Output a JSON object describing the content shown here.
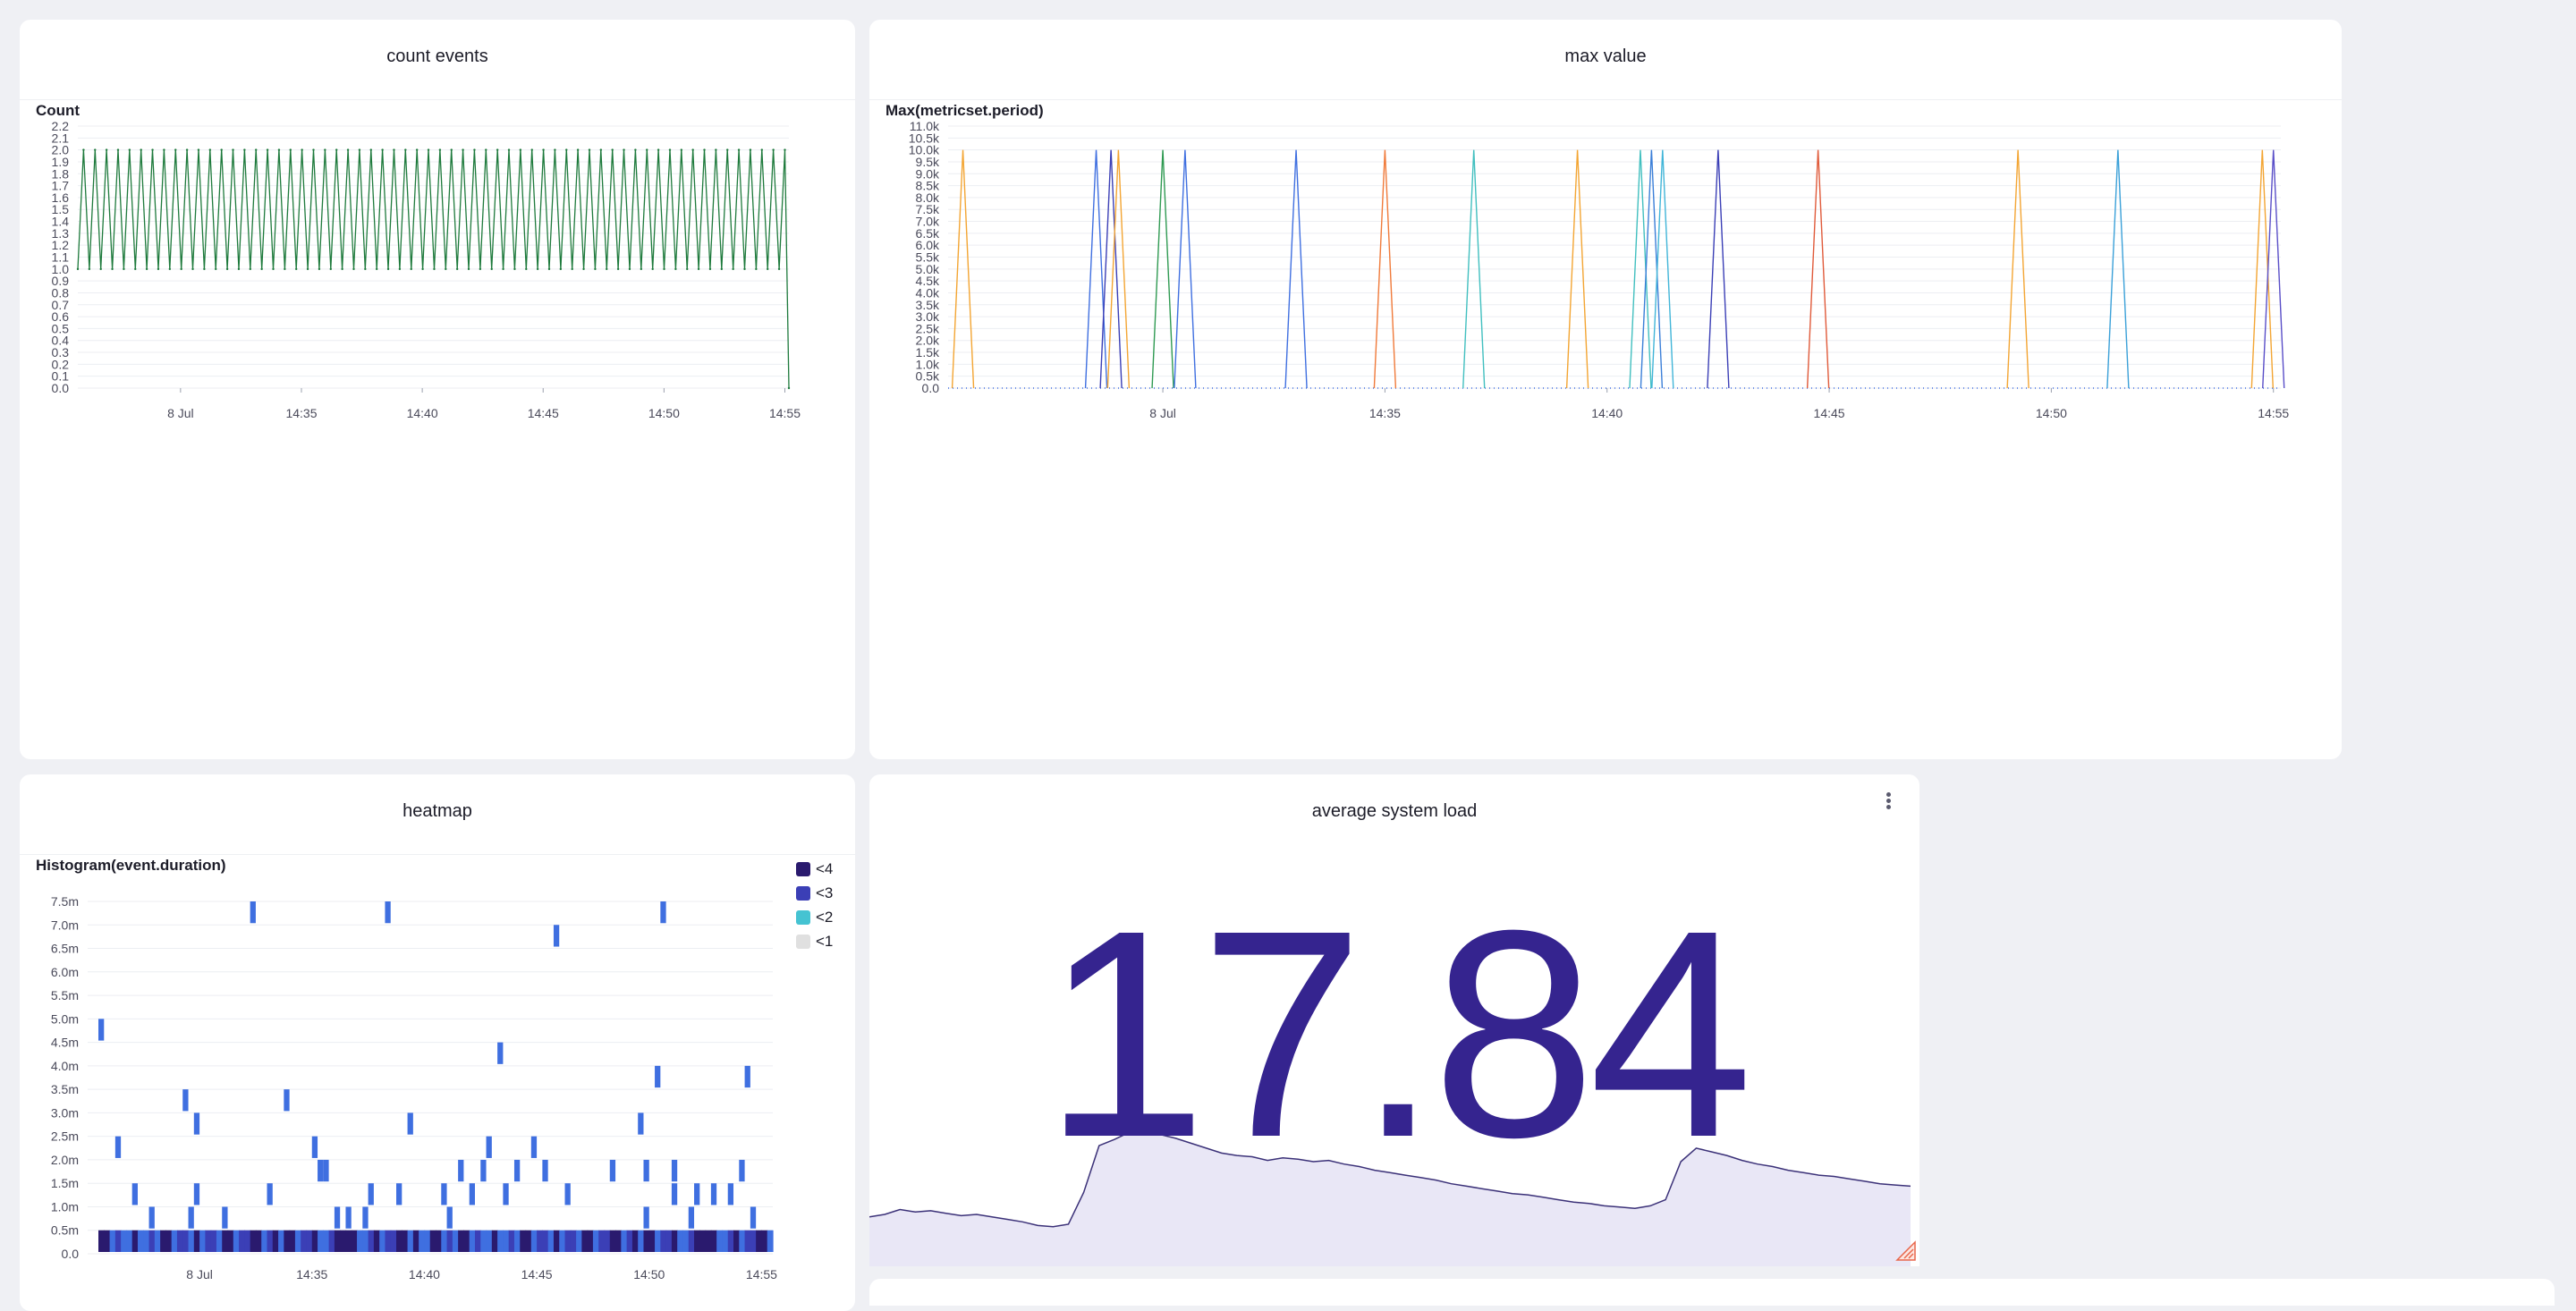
{
  "colors": {
    "background": "#eff0f4",
    "panel": "#ffffff",
    "count_line": "#1e7a3c",
    "heatmap_dark": "#1f1964",
    "heatmap_mid": "#3b3fb6",
    "heatmap_light": "#3f6fe0",
    "bignum": "#35248f",
    "sparkline_fill": "#e9e7f6",
    "sparkline_stroke": "#3b3178",
    "resize_handle": "#e8674c"
  },
  "panels": {
    "count_events": {
      "title": "count events"
    },
    "max_value": {
      "title": "max value"
    },
    "heatmap": {
      "title": "heatmap"
    },
    "average_system_load": {
      "title": "average system load",
      "value": "17.84",
      "menu_icon": "kebab-menu-icon",
      "resize_icon": "resize-handle-icon"
    }
  },
  "chart_data": [
    {
      "type": "line",
      "title": "count events",
      "ylabel": "Count",
      "xlabel": "",
      "ylim": [
        0,
        2.2
      ],
      "yticks": [
        "0.0",
        "0.1",
        "0.2",
        "0.3",
        "0.4",
        "0.5",
        "0.6",
        "0.7",
        "0.8",
        "0.9",
        "1.0",
        "1.1",
        "1.2",
        "1.3",
        "1.4",
        "1.5",
        "1.6",
        "1.7",
        "1.8",
        "1.9",
        "2.0",
        "2.1",
        "2.2"
      ],
      "xticks": [
        "8 Jul",
        "14:35",
        "14:40",
        "14:45",
        "14:50",
        "14:55"
      ],
      "xlim": [
        "14:25:45",
        "14:55:10"
      ],
      "grid": true,
      "series": [
        {
          "color": "#1e7a3c",
          "pattern": "alternating 1 and 2 from 14:25:45 to 14:55:00, then 0 at 14:55:10",
          "values": [
            1,
            2,
            1,
            2,
            1,
            2,
            1,
            2,
            1,
            2,
            1,
            2,
            1,
            2,
            1,
            2,
            1,
            2,
            1,
            2,
            1,
            2,
            1,
            2,
            1,
            2,
            1,
            2,
            1,
            2,
            1,
            2,
            1,
            2,
            1,
            2,
            1,
            2,
            1,
            2,
            1,
            2,
            1,
            2,
            1,
            2,
            1,
            2,
            1,
            2,
            1,
            2,
            1,
            2,
            1,
            2,
            1,
            2,
            1,
            2,
            1,
            2,
            1,
            2,
            1,
            2,
            1,
            2,
            1,
            2,
            1,
            2,
            1,
            2,
            1,
            2,
            1,
            2,
            1,
            2,
            1,
            2,
            1,
            2,
            1,
            2,
            1,
            2,
            1,
            2,
            1,
            2,
            1,
            2,
            1,
            2,
            1,
            2,
            1,
            2,
            1,
            2,
            1,
            2,
            1,
            2,
            1,
            2,
            1,
            2,
            1,
            2,
            1,
            2,
            1,
            2,
            1,
            2,
            1,
            2,
            1,
            2,
            1,
            2,
            0
          ]
        }
      ]
    },
    {
      "type": "line",
      "title": "max value",
      "ylabel": "Max(metricset.period)",
      "xlabel": "",
      "ylim": [
        0,
        11000
      ],
      "yticks": [
        "0.0",
        "0.5k",
        "1.0k",
        "1.5k",
        "2.0k",
        "2.5k",
        "3.0k",
        "3.5k",
        "4.0k",
        "4.5k",
        "5.0k",
        "5.5k",
        "6.0k",
        "6.5k",
        "7.0k",
        "7.5k",
        "8.0k",
        "8.5k",
        "9.0k",
        "9.5k",
        "10.0k",
        "10.5k",
        "11.0k"
      ],
      "xticks": [
        "8 Jul",
        "14:35",
        "14:40",
        "14:45",
        "14:50",
        "14:55"
      ],
      "xlim": [
        "14:25:10",
        "14:55:10"
      ],
      "grid": true,
      "baseline": 0,
      "spikes": [
        {
          "time": "14:25:30",
          "value": 10000,
          "color": "#f3a533"
        },
        {
          "time": "14:28:30",
          "value": 10000,
          "color": "#3f6fe0"
        },
        {
          "time": "14:28:50",
          "value": 10000,
          "color": "#3b3fb6"
        },
        {
          "time": "14:29:00",
          "value": 10000,
          "color": "#f3a533"
        },
        {
          "time": "14:30:00",
          "value": 10000,
          "color": "#2f9a52"
        },
        {
          "time": "14:30:30",
          "value": 10000,
          "color": "#3f6fe0"
        },
        {
          "time": "14:33:00",
          "value": 10000,
          "color": "#3f6fe0"
        },
        {
          "time": "14:35:00",
          "value": 10000,
          "color": "#f07a3a"
        },
        {
          "time": "14:37:00",
          "value": 10000,
          "color": "#41bfbf"
        },
        {
          "time": "14:39:20",
          "value": 10000,
          "color": "#f3a533"
        },
        {
          "time": "14:40:45",
          "value": 10000,
          "color": "#41bfbf"
        },
        {
          "time": "14:41:00",
          "value": 10000,
          "color": "#3b7fd8"
        },
        {
          "time": "14:41:15",
          "value": 10000,
          "color": "#41b5d8"
        },
        {
          "time": "14:42:30",
          "value": 10000,
          "color": "#3b3fb6"
        },
        {
          "time": "14:44:45",
          "value": 10000,
          "color": "#e05a3a"
        },
        {
          "time": "14:49:15",
          "value": 10000,
          "color": "#f3a533"
        },
        {
          "time": "14:51:30",
          "value": 10000,
          "color": "#3aa0d8"
        },
        {
          "time": "14:54:45",
          "value": 10000,
          "color": "#f3a533"
        },
        {
          "time": "14:55:00",
          "value": 10000,
          "color": "#5a4fc8"
        }
      ]
    },
    {
      "type": "heatmap",
      "title": "heatmap",
      "ylabel": "Histogram(event.duration)",
      "xlabel": "",
      "ylim": [
        0,
        7.5
      ],
      "yunit": "m",
      "yticks": [
        "0.0",
        "0.5m",
        "1.0m",
        "1.5m",
        "2.0m",
        "2.5m",
        "3.0m",
        "3.5m",
        "4.0m",
        "4.5m",
        "5.0m",
        "5.5m",
        "6.0m",
        "6.5m",
        "7.0m",
        "7.5m"
      ],
      "xticks": [
        "8 Jul",
        "14:35",
        "14:40",
        "14:45",
        "14:50",
        "14:55"
      ],
      "xlim": [
        "14:25:30",
        "14:55:30"
      ],
      "legend": {
        "position": "top-right",
        "items": [
          {
            "label": "<4",
            "color": "#2a1a6e"
          },
          {
            "label": "<3",
            "color": "#3b3fb6"
          },
          {
            "label": "<2",
            "color": "#45c3d2"
          },
          {
            "label": "<1",
            "color": "#e0e0e0"
          }
        ]
      },
      "bottom_row_buckets_per_minute": 4,
      "bottom_row_pattern": "dense mix of <4, <3 and <2 across 14:25:30–14:55:30 at 0.0–0.5m",
      "cells": [
        {
          "time": "14:25:30",
          "y": 4.5,
          "level": "<2"
        },
        {
          "time": "14:26:15",
          "y": 2.0,
          "level": "<2"
        },
        {
          "time": "14:27:00",
          "y": 1.0,
          "level": "<2"
        },
        {
          "time": "14:27:45",
          "y": 0.5,
          "level": "<2"
        },
        {
          "time": "14:29:15",
          "y": 3.0,
          "level": "<2"
        },
        {
          "time": "14:29:45",
          "y": 2.5,
          "level": "<2"
        },
        {
          "time": "14:29:45",
          "y": 1.0,
          "level": "<2"
        },
        {
          "time": "14:29:30",
          "y": 0.5,
          "level": "<2"
        },
        {
          "time": "14:31:00",
          "y": 0.5,
          "level": "<2"
        },
        {
          "time": "14:32:15",
          "y": 7.0,
          "level": "<2"
        },
        {
          "time": "14:33:00",
          "y": 1.0,
          "level": "<2"
        },
        {
          "time": "14:33:45",
          "y": 3.0,
          "level": "<2"
        },
        {
          "time": "14:35:00",
          "y": 2.0,
          "level": "<2"
        },
        {
          "time": "14:35:15",
          "y": 1.5,
          "level": "<2"
        },
        {
          "time": "14:35:30",
          "y": 1.5,
          "level": "<2"
        },
        {
          "time": "14:36:00",
          "y": 0.5,
          "level": "<2"
        },
        {
          "time": "14:36:30",
          "y": 0.5,
          "level": "<2"
        },
        {
          "time": "14:37:15",
          "y": 0.5,
          "level": "<2"
        },
        {
          "time": "14:37:30",
          "y": 1.0,
          "level": "<2"
        },
        {
          "time": "14:38:15",
          "y": 7.0,
          "level": "<2"
        },
        {
          "time": "14:38:45",
          "y": 1.0,
          "level": "<2"
        },
        {
          "time": "14:39:15",
          "y": 2.5,
          "level": "<2"
        },
        {
          "time": "14:40:45",
          "y": 1.0,
          "level": "<2"
        },
        {
          "time": "14:41:30",
          "y": 1.5,
          "level": "<2"
        },
        {
          "time": "14:41:00",
          "y": 0.5,
          "level": "<2"
        },
        {
          "time": "14:42:00",
          "y": 1.0,
          "level": "<2"
        },
        {
          "time": "14:42:30",
          "y": 1.5,
          "level": "<2"
        },
        {
          "time": "14:42:45",
          "y": 2.0,
          "level": "<2"
        },
        {
          "time": "14:43:15",
          "y": 4.0,
          "level": "<2"
        },
        {
          "time": "14:43:30",
          "y": 1.0,
          "level": "<2"
        },
        {
          "time": "14:44:00",
          "y": 1.5,
          "level": "<2"
        },
        {
          "time": "14:44:45",
          "y": 2.0,
          "level": "<2"
        },
        {
          "time": "14:45:15",
          "y": 1.5,
          "level": "<2"
        },
        {
          "time": "14:45:45",
          "y": 6.5,
          "level": "<2"
        },
        {
          "time": "14:46:15",
          "y": 1.0,
          "level": "<2"
        },
        {
          "time": "14:48:15",
          "y": 1.5,
          "level": "<2"
        },
        {
          "time": "14:49:30",
          "y": 2.5,
          "level": "<2"
        },
        {
          "time": "14:49:45",
          "y": 1.5,
          "level": "<2"
        },
        {
          "time": "14:49:45",
          "y": 0.5,
          "level": "<2"
        },
        {
          "time": "14:50:15",
          "y": 3.5,
          "level": "<2"
        },
        {
          "time": "14:50:30",
          "y": 7.0,
          "level": "<2"
        },
        {
          "time": "14:51:00",
          "y": 1.0,
          "level": "<2"
        },
        {
          "time": "14:51:00",
          "y": 1.5,
          "level": "<2"
        },
        {
          "time": "14:51:45",
          "y": 0.5,
          "level": "<2"
        },
        {
          "time": "14:52:00",
          "y": 1.0,
          "level": "<2"
        },
        {
          "time": "14:52:45",
          "y": 1.0,
          "level": "<2"
        },
        {
          "time": "14:53:30",
          "y": 1.0,
          "level": "<2"
        },
        {
          "time": "14:54:00",
          "y": 1.5,
          "level": "<2"
        },
        {
          "time": "14:54:15",
          "y": 3.5,
          "level": "<2"
        },
        {
          "time": "14:54:30",
          "y": 0.5,
          "level": "<2"
        }
      ]
    },
    {
      "type": "area",
      "title": "average system load",
      "value": "17.84",
      "sparkline": [
        3.0,
        3.2,
        3.6,
        3.4,
        3.5,
        3.3,
        3.1,
        3.2,
        3.0,
        2.8,
        2.6,
        2.3,
        2.2,
        2.4,
        5.0,
        8.8,
        9.3,
        9.9,
        9.8,
        9.7,
        9.4,
        9.0,
        8.6,
        8.2,
        8.0,
        7.9,
        7.6,
        7.8,
        7.7,
        7.5,
        7.6,
        7.3,
        7.1,
        6.8,
        6.6,
        6.4,
        6.2,
        6.0,
        5.7,
        5.5,
        5.3,
        5.1,
        4.9,
        4.8,
        4.6,
        4.4,
        4.2,
        4.1,
        3.9,
        3.8,
        3.7,
        3.9,
        4.4,
        7.5,
        8.6,
        8.3,
        8.0,
        7.6,
        7.3,
        7.1,
        6.8,
        6.6,
        6.4,
        6.3,
        6.1,
        5.9,
        5.7,
        5.6,
        5.5
      ]
    }
  ]
}
